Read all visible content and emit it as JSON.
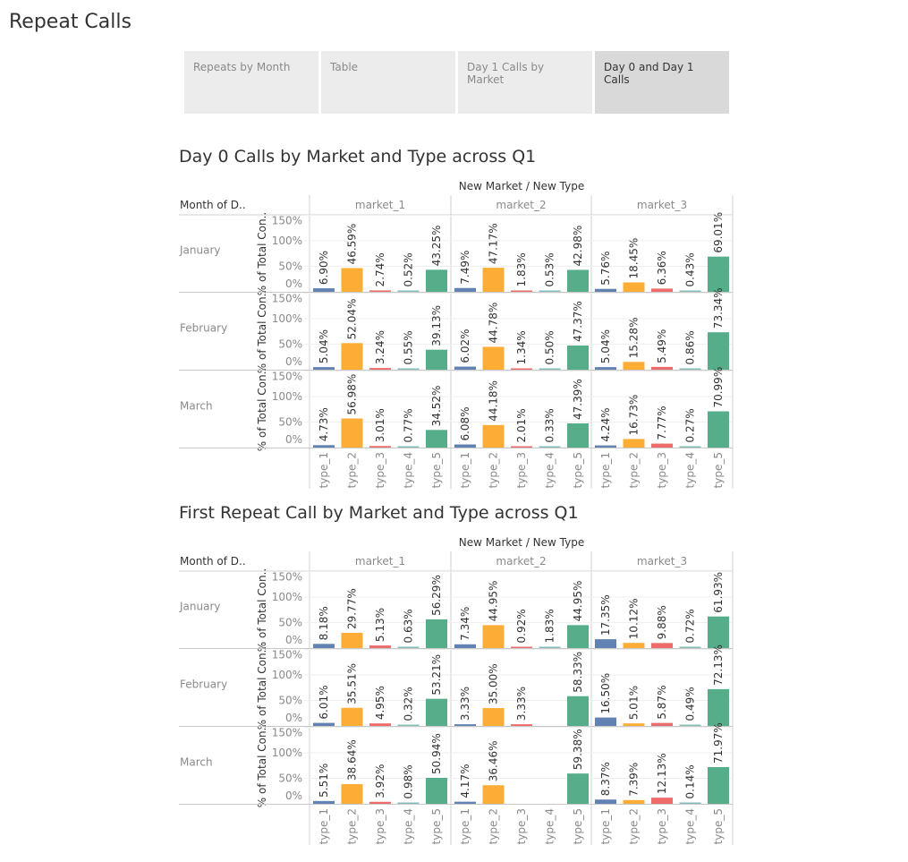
{
  "page": {
    "title": "Repeat Calls"
  },
  "tabs": [
    {
      "label": "Repeats by Month",
      "active": false
    },
    {
      "label": "Table",
      "active": false
    },
    {
      "label": "Day 1 Calls by Market",
      "active": false
    },
    {
      "label": "Day 0 and Day 1 Calls",
      "active": true
    }
  ],
  "colors": {
    "type_1": "#6182b2",
    "type_2": "#fbad35",
    "type_3": "#ee6b6b",
    "type_4": "#86bcb8",
    "type_5": "#55ad89"
  },
  "charts": [
    {
      "title": "Day 0 Calls by Market and Type across Q1",
      "column_header": "New Market  /  New Type",
      "row_header": "Month of D..",
      "yaxis_label": "% of Total Con..",
      "y_ticks": [
        "0%",
        "50%",
        "100%",
        "150%"
      ],
      "markets": [
        "market_1",
        "market_2",
        "market_3"
      ],
      "types": [
        "type_1",
        "type_2",
        "type_3",
        "type_4",
        "type_5"
      ],
      "months": [
        "January",
        "February",
        "March"
      ],
      "chart_data": {
        "type": "bar",
        "ylim": [
          0,
          150
        ],
        "values": [
          [
            [
              6.9,
              46.59,
              2.74,
              0.52,
              43.25
            ],
            [
              7.49,
              47.17,
              1.83,
              0.53,
              42.98
            ],
            [
              5.76,
              18.45,
              6.36,
              0.43,
              69.01
            ]
          ],
          [
            [
              5.04,
              52.04,
              3.24,
              0.55,
              39.13
            ],
            [
              6.02,
              44.78,
              1.34,
              0.5,
              47.37
            ],
            [
              5.04,
              15.28,
              5.49,
              0.86,
              73.34
            ]
          ],
          [
            [
              4.73,
              56.98,
              3.01,
              0.77,
              34.52
            ],
            [
              6.08,
              44.18,
              2.01,
              0.33,
              47.39
            ],
            [
              4.24,
              16.73,
              7.77,
              0.27,
              70.99
            ]
          ]
        ],
        "labels": [
          [
            [
              "6.90%",
              "46.59%",
              "2.74%",
              "0.52%",
              "43.25%"
            ],
            [
              "7.49%",
              "47.17%",
              "1.83%",
              "0.53%",
              "42.98%"
            ],
            [
              "5.76%",
              "18.45%",
              "6.36%",
              "0.43%",
              "69.01%"
            ]
          ],
          [
            [
              "5.04%",
              "52.04%",
              "3.24%",
              "0.55%",
              "39.13%"
            ],
            [
              "6.02%",
              "44.78%",
              "1.34%",
              "0.50%",
              "47.37%"
            ],
            [
              "5.04%",
              "15.28%",
              "5.49%",
              "0.86%",
              "73.34%"
            ]
          ],
          [
            [
              "4.73%",
              "56.98%",
              "3.01%",
              "0.77%",
              "34.52%"
            ],
            [
              "6.08%",
              "44.18%",
              "2.01%",
              "0.33%",
              "47.39%"
            ],
            [
              "4.24%",
              "16.73%",
              "7.77%",
              "0.27%",
              "70.99%"
            ]
          ]
        ]
      }
    },
    {
      "title": "First Repeat Call by Market and Type across Q1",
      "column_header": "New Market  /  New Type",
      "row_header": "Month of D..",
      "yaxis_label": "% of Total Con..",
      "y_ticks": [
        "0%",
        "50%",
        "100%",
        "150%"
      ],
      "markets": [
        "market_1",
        "market_2",
        "market_3"
      ],
      "types": [
        "type_1",
        "type_2",
        "type_3",
        "type_4",
        "type_5"
      ],
      "months": [
        "January",
        "February",
        "March"
      ],
      "chart_data": {
        "type": "bar",
        "ylim": [
          0,
          150
        ],
        "values": [
          [
            [
              8.18,
              29.77,
              5.13,
              0.63,
              56.29
            ],
            [
              7.34,
              44.95,
              0.92,
              1.83,
              44.95
            ],
            [
              17.35,
              10.12,
              9.88,
              0.72,
              61.93
            ]
          ],
          [
            [
              6.01,
              35.51,
              4.95,
              0.32,
              53.21
            ],
            [
              3.33,
              35.0,
              3.33,
              null,
              58.33
            ],
            [
              16.5,
              5.01,
              5.87,
              0.49,
              72.13
            ]
          ],
          [
            [
              5.51,
              38.64,
              3.92,
              0.98,
              50.94
            ],
            [
              4.17,
              36.46,
              null,
              null,
              59.38
            ],
            [
              8.37,
              7.39,
              12.13,
              0.14,
              71.97
            ]
          ]
        ],
        "labels": [
          [
            [
              "8.18%",
              "29.77%",
              "5.13%",
              "0.63%",
              "56.29%"
            ],
            [
              "7.34%",
              "44.95%",
              "0.92%",
              "1.83%",
              "44.95%"
            ],
            [
              "17.35%",
              "10.12%",
              "9.88%",
              "0.72%",
              "61.93%"
            ]
          ],
          [
            [
              "6.01%",
              "35.51%",
              "4.95%",
              "0.32%",
              "53.21%"
            ],
            [
              "3.33%",
              "35.00%",
              "3.33%",
              null,
              "58.33%"
            ],
            [
              "16.50%",
              "5.01%",
              "5.87%",
              "0.49%",
              "72.13%"
            ]
          ],
          [
            [
              "5.51%",
              "38.64%",
              "3.92%",
              "0.98%",
              "50.94%"
            ],
            [
              "4.17%",
              "36.46%",
              null,
              null,
              "59.38%"
            ],
            [
              "8.37%",
              "7.39%",
              "12.13%",
              "0.14%",
              "71.97%"
            ]
          ]
        ]
      }
    }
  ]
}
